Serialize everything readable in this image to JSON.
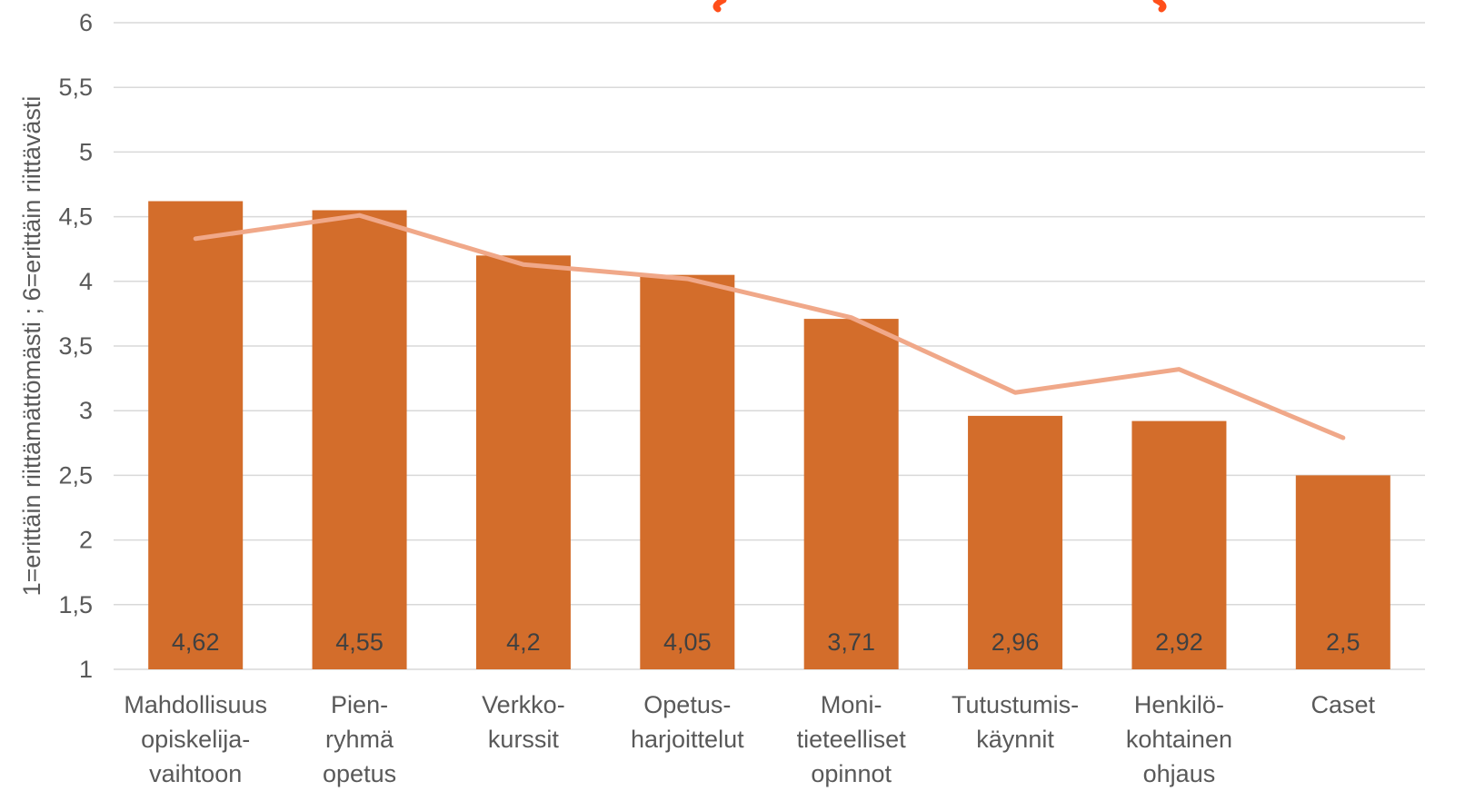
{
  "chart_data": {
    "type": "bar",
    "title": "",
    "ylabel": "1=erittäin riittämättömästi ; 6=erittäin riittävästi",
    "xlabel": "",
    "ylim": [
      1,
      6
    ],
    "yticks": [
      "1",
      "1,5",
      "2",
      "2,5",
      "3",
      "3,5",
      "4",
      "4,5",
      "5",
      "5,5",
      "6"
    ],
    "categories": [
      [
        "Mahdollisuus",
        "opiskelija-",
        "vaihtoon"
      ],
      [
        "Pien-",
        "ryhmä",
        "opetus"
      ],
      [
        "Verkko-",
        "kurssit"
      ],
      [
        "Opetus-",
        "harjoittelut"
      ],
      [
        "Moni-",
        "tieteelliset",
        "opinnot"
      ],
      [
        "Tutustumis-",
        "käynnit"
      ],
      [
        "Henkilö-",
        "kohtainen",
        "ohjaus"
      ],
      [
        "Caset"
      ]
    ],
    "series": [
      {
        "type": "bar",
        "values": [
          4.62,
          4.55,
          4.2,
          4.05,
          3.71,
          2.96,
          2.92,
          2.5
        ],
        "labels": [
          "4,62",
          "4,55",
          "4,2",
          "4,05",
          "3,71",
          "2,96",
          "2,92",
          "2,5"
        ],
        "color": "#d36d2b"
      },
      {
        "type": "line",
        "values": [
          4.33,
          4.51,
          4.13,
          4.02,
          3.72,
          3.14,
          3.32,
          2.79
        ],
        "color": "#f0a889"
      }
    ],
    "grid": true,
    "gridColor": "#d9d9d9",
    "titleColor": "#ff4f1a"
  }
}
